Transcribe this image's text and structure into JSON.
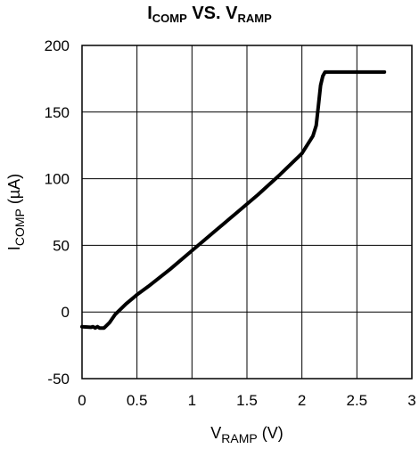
{
  "chart_data": {
    "type": "line",
    "title": {
      "main1": "I",
      "sub1": "COMP",
      "mid": " VS. V",
      "sub2": "RAMP"
    },
    "xlabel": {
      "main": "V",
      "sub": "RAMP",
      "unit": " (V)"
    },
    "ylabel": {
      "main": "I",
      "sub": "COMP",
      "unit": " (µA)"
    },
    "xlim": [
      0,
      3
    ],
    "ylim": [
      -50,
      200
    ],
    "x_ticks": [
      0,
      0.5,
      1,
      1.5,
      2,
      2.5,
      3
    ],
    "x_tick_labels": [
      "0",
      "0.5",
      "1",
      "1.5",
      "2",
      "2.5",
      "3"
    ],
    "y_ticks": [
      -50,
      0,
      50,
      100,
      150,
      200
    ],
    "y_tick_labels": [
      "-50",
      "0",
      "50",
      "100",
      "150",
      "200"
    ],
    "grid": true,
    "series": [
      {
        "x": [
          0,
          0.08,
          0.1,
          0.12,
          0.14,
          0.16,
          0.2,
          0.25,
          0.3,
          0.4,
          0.5,
          0.6,
          0.8,
          1.0,
          1.2,
          1.4,
          1.6,
          1.8,
          2.0,
          2.1,
          2.13,
          2.15,
          2.17,
          2.19,
          2.21,
          2.25,
          2.5,
          2.75
        ],
        "y": [
          -11,
          -11.5,
          -11,
          -12,
          -11,
          -12,
          -12,
          -8,
          -2,
          6,
          13,
          19,
          32,
          46,
          60,
          74,
          88,
          103,
          119,
          132,
          140,
          155,
          170,
          177,
          180,
          180,
          180,
          180
        ],
        "color": "#000000"
      }
    ]
  }
}
